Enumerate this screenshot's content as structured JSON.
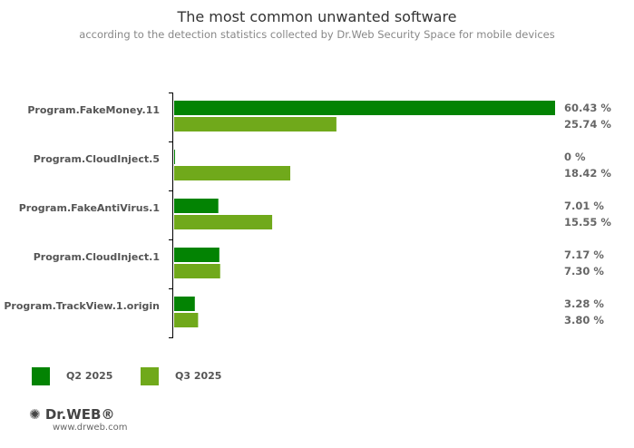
{
  "chart_data": {
    "type": "bar",
    "orientation": "horizontal",
    "title": "The most common unwanted software",
    "subtitle": "according to the detection statistics collected by Dr.Web Security Space for mobile devices",
    "categories": [
      "Program.FakeMoney.11",
      "Program.CloudInject.5",
      "Program.FakeAntiVirus.1",
      "Program.CloudInject.1",
      "Program.TrackView.1.origin"
    ],
    "series": [
      {
        "name": "Q2 2025",
        "color": "#038303",
        "values": [
          60.43,
          0,
          7.01,
          7.17,
          3.28
        ],
        "labels": [
          "60.43 %",
          "0 %",
          "7.01 %",
          "7.17 %",
          "3.28 %"
        ]
      },
      {
        "name": "Q3 2025",
        "color": "#70a91b",
        "values": [
          25.74,
          18.42,
          15.55,
          7.3,
          3.8
        ],
        "labels": [
          "25.74 %",
          "18.42 %",
          "15.55 %",
          "7.30 %",
          "3.80 %"
        ]
      }
    ],
    "xlim": [
      0,
      60.43
    ],
    "grid": false,
    "legend": "bottom-left"
  },
  "branding": {
    "logo": "Dr.WEB®",
    "url": "www.drweb.com"
  }
}
